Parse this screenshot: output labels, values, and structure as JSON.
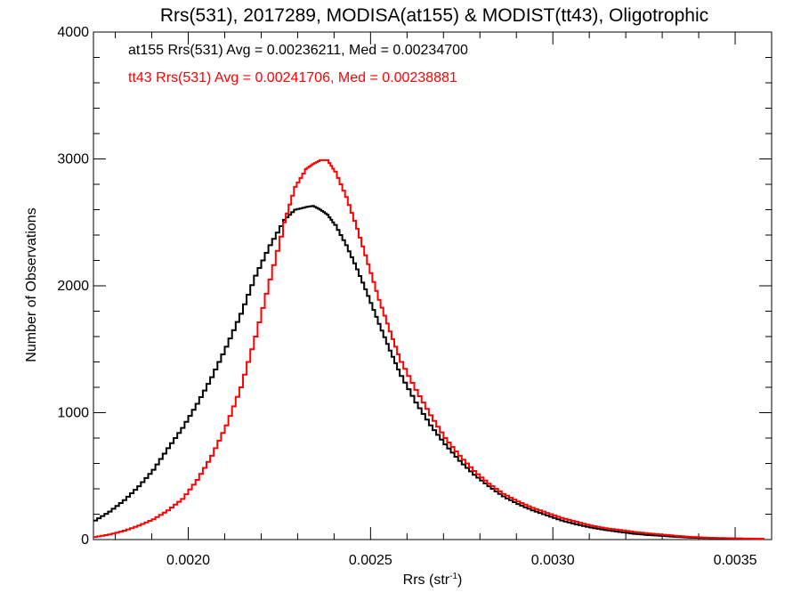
{
  "chart_data": {
    "type": "line",
    "style": "step-histogram",
    "title": "Rrs(531), 2017289, MODISA(at155) & MODIST(tt43), Oligotrophic",
    "xlabel_main": "Rrs (str",
    "xlabel_sup": "-1",
    "xlabel_close": ")",
    "ylabel": "Number of Observations",
    "xlim": [
      0.00174,
      0.0036
    ],
    "ylim": [
      0,
      4000
    ],
    "x_ticks": [
      0.002,
      0.0025,
      0.003,
      0.0035
    ],
    "x_tick_labels": [
      "0.0020",
      "0.0025",
      "0.0030",
      "0.0035"
    ],
    "y_ticks": [
      0,
      1000,
      2000,
      3000,
      4000
    ],
    "y_tick_labels": [
      "0",
      "1000",
      "2000",
      "3000",
      "4000"
    ],
    "annotations": [
      {
        "text": "at155 Rrs(531) Avg = 0.00236211, Med = 0.00234700",
        "color": "#000000"
      },
      {
        "text": "tt43 Rrs(531) Avg = 0.00241706, Med = 0.00238881",
        "color": "#ff0000"
      }
    ],
    "series": [
      {
        "color": "#000000",
        "x": [
          0.00174,
          0.00178,
          0.00182,
          0.00186,
          0.0019,
          0.00194,
          0.00198,
          0.00202,
          0.00206,
          0.0021,
          0.00214,
          0.00218,
          0.00222,
          0.00226,
          0.00229,
          0.00232,
          0.00234,
          0.00236,
          0.00238,
          0.0024,
          0.00243,
          0.00246,
          0.00249,
          0.00252,
          0.00255,
          0.00258,
          0.00262,
          0.00266,
          0.0027,
          0.00274,
          0.00278,
          0.00282,
          0.00286,
          0.0029,
          0.00294,
          0.00298,
          0.00302,
          0.00306,
          0.0031,
          0.00314,
          0.00318,
          0.00322,
          0.00326,
          0.0033,
          0.00334,
          0.00338,
          0.00342,
          0.00346,
          0.0035,
          0.00354,
          0.00358
        ],
        "y": [
          150,
          220,
          310,
          420,
          550,
          720,
          880,
          1070,
          1280,
          1520,
          1780,
          2080,
          2320,
          2520,
          2600,
          2620,
          2630,
          2600,
          2560,
          2480,
          2320,
          2130,
          1920,
          1700,
          1490,
          1290,
          1080,
          900,
          750,
          620,
          510,
          420,
          340,
          280,
          230,
          190,
          150,
          120,
          95,
          75,
          60,
          45,
          35,
          28,
          20,
          15,
          12,
          10,
          8,
          6,
          5
        ]
      },
      {
        "color": "#ff0000",
        "x": [
          0.00174,
          0.00178,
          0.00182,
          0.00186,
          0.0019,
          0.00194,
          0.00198,
          0.00202,
          0.00206,
          0.0021,
          0.00214,
          0.00218,
          0.00222,
          0.00226,
          0.00229,
          0.00232,
          0.00234,
          0.00236,
          0.00238,
          0.0024,
          0.00243,
          0.00246,
          0.00249,
          0.00252,
          0.00255,
          0.00258,
          0.00262,
          0.00266,
          0.0027,
          0.00274,
          0.00278,
          0.00282,
          0.00286,
          0.0029,
          0.00294,
          0.00298,
          0.00302,
          0.00306,
          0.0031,
          0.00314,
          0.00318,
          0.00322,
          0.00326,
          0.0033,
          0.00334,
          0.00338,
          0.00342,
          0.00346,
          0.0035,
          0.00354,
          0.00358
        ],
        "y": [
          20,
          40,
          70,
          110,
          160,
          230,
          320,
          470,
          660,
          900,
          1200,
          1600,
          2050,
          2500,
          2780,
          2920,
          2960,
          2990,
          2990,
          2900,
          2700,
          2450,
          2170,
          1890,
          1640,
          1400,
          1180,
          980,
          800,
          660,
          540,
          440,
          360,
          300,
          250,
          210,
          170,
          140,
          110,
          90,
          75,
          60,
          48,
          38,
          28,
          20,
          15,
          12,
          9,
          7,
          5
        ]
      }
    ]
  }
}
